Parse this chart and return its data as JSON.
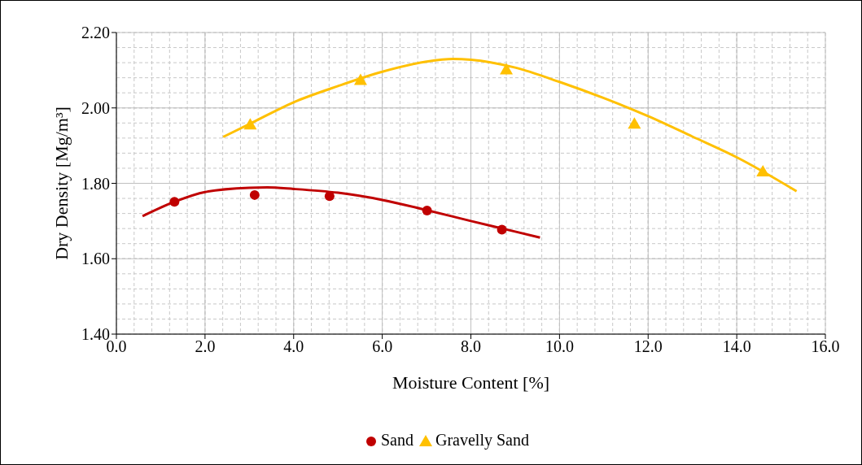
{
  "chart_data": {
    "type": "scatter",
    "xlabel": "Moisture Content [%]",
    "ylabel": "Dry Density [Mg/m³]",
    "xlim": [
      0,
      16
    ],
    "xticks": [
      {
        "value": 0,
        "label": "0.0"
      },
      {
        "value": 2,
        "label": "2.0"
      },
      {
        "value": 4,
        "label": "4.0"
      },
      {
        "value": 6,
        "label": "6.0"
      },
      {
        "value": 8,
        "label": "8.0"
      },
      {
        "value": 10,
        "label": "10.0"
      },
      {
        "value": 12,
        "label": "12.0"
      },
      {
        "value": 14,
        "label": "14.0"
      },
      {
        "value": 16,
        "label": "16.0"
      }
    ],
    "ylim": [
      1.4,
      2.2
    ],
    "yticks": [
      {
        "value": 1.4,
        "label": "1.40"
      },
      {
        "value": 1.6,
        "label": "1.60"
      },
      {
        "value": 1.8,
        "label": "1.80"
      },
      {
        "value": 2.0,
        "label": "2.00"
      },
      {
        "value": 2.2,
        "label": "2.20"
      }
    ],
    "grid": true,
    "legend": "bottom",
    "series": [
      {
        "name": "Sand",
        "marker": "circle",
        "color": "#c00000",
        "x": [
          1.31,
          3.12,
          4.81,
          7.01,
          8.7
        ],
        "values": [
          1.751,
          1.769,
          1.766,
          1.728,
          1.677
        ]
      },
      {
        "name": "Gravelly Sand",
        "marker": "triangle",
        "color": "#ffc000",
        "x": [
          3.02,
          5.51,
          8.8,
          11.69,
          14.59
        ],
        "values": [
          1.956,
          2.074,
          2.102,
          1.958,
          1.831
        ]
      },
      {
        "type": "line",
        "marker": "none",
        "color": "#c00000",
        "x": [
          0.59,
          1.31,
          2,
          3,
          3.4,
          4,
          5,
          6,
          7,
          8,
          9,
          9.56
        ],
        "values": [
          1.713,
          1.751,
          1.777,
          1.788,
          1.789,
          1.785,
          1.775,
          1.756,
          1.729,
          1.7,
          1.672,
          1.656
        ]
      },
      {
        "type": "line",
        "marker": "none",
        "color": "#ffc000",
        "x": [
          2.41,
          3,
          4,
          5,
          6,
          7,
          7.6,
          8,
          9,
          10,
          11,
          12,
          13,
          14,
          15.35
        ],
        "values": [
          1.923,
          1.957,
          2.015,
          2.058,
          2.096,
          2.123,
          2.13,
          2.128,
          2.107,
          2.069,
          2.026,
          1.978,
          1.924,
          1.869,
          1.779
        ]
      }
    ]
  }
}
